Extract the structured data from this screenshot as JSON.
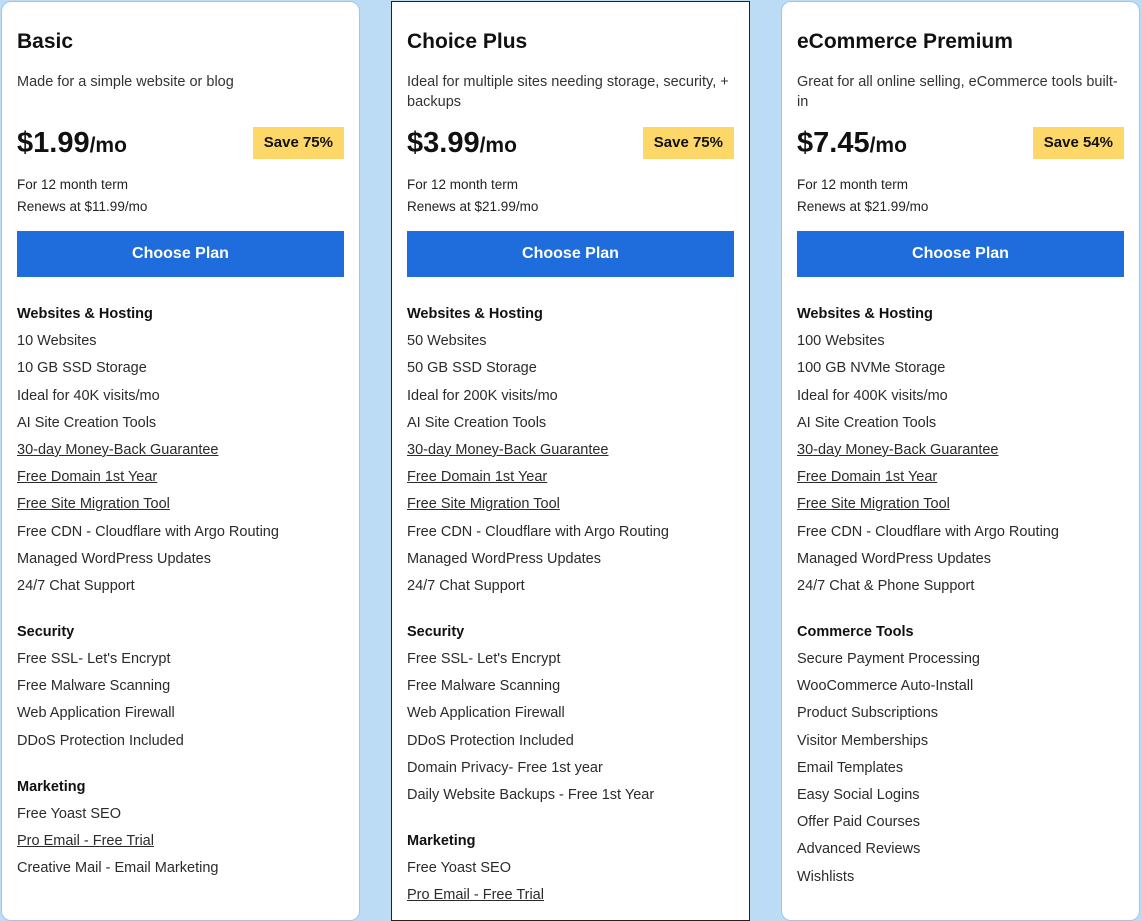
{
  "plans": [
    {
      "name": "Basic",
      "description": "Made for a simple website or blog",
      "price": "$1.99",
      "per": "/mo",
      "save": "Save 75%",
      "term": "For 12 month term",
      "renews": "Renews at $11.99/mo",
      "button": "Choose Plan",
      "sections": [
        {
          "title": "Websites & Hosting",
          "items": [
            {
              "text": "10 Websites",
              "link": false
            },
            {
              "text": "10 GB SSD Storage",
              "link": false
            },
            {
              "text": "Ideal for 40K visits/mo",
              "link": false
            },
            {
              "text": "AI Site Creation Tools",
              "link": false
            },
            {
              "text": "30-day Money-Back Guarantee",
              "link": true
            },
            {
              "text": "Free Domain 1st Year",
              "link": true
            },
            {
              "text": "Free Site Migration Tool",
              "link": true
            },
            {
              "text": "Free CDN - Cloudflare with Argo Routing",
              "link": false
            },
            {
              "text": "Managed WordPress Updates",
              "link": false
            },
            {
              "text": "24/7 Chat Support",
              "link": false
            }
          ]
        },
        {
          "title": "Security",
          "items": [
            {
              "text": "Free SSL- Let's Encrypt",
              "link": false
            },
            {
              "text": "Free Malware Scanning",
              "link": false
            },
            {
              "text": "Web Application Firewall",
              "link": false
            },
            {
              "text": "DDoS Protection Included",
              "link": false
            }
          ]
        },
        {
          "title": "Marketing",
          "items": [
            {
              "text": "Free Yoast SEO",
              "link": false
            },
            {
              "text": "Pro Email - Free Trial",
              "link": true
            },
            {
              "text": "Creative Mail - Email Marketing",
              "link": false
            }
          ]
        }
      ]
    },
    {
      "name": "Choice Plus",
      "description": "Ideal for multiple sites needing storage, security, + backups",
      "price": "$3.99",
      "per": "/mo",
      "save": "Save 75%",
      "term": "For 12 month term",
      "renews": "Renews at $21.99/mo",
      "button": "Choose Plan",
      "sections": [
        {
          "title": "Websites & Hosting",
          "items": [
            {
              "text": "50 Websites",
              "link": false
            },
            {
              "text": "50 GB SSD Storage",
              "link": false
            },
            {
              "text": "Ideal for 200K visits/mo",
              "link": false
            },
            {
              "text": "AI Site Creation Tools",
              "link": false
            },
            {
              "text": "30-day Money-Back Guarantee",
              "link": true
            },
            {
              "text": "Free Domain 1st Year",
              "link": true
            },
            {
              "text": "Free Site Migration Tool",
              "link": true
            },
            {
              "text": "Free CDN - Cloudflare with Argo Routing",
              "link": false
            },
            {
              "text": "Managed WordPress Updates",
              "link": false
            },
            {
              "text": "24/7 Chat Support",
              "link": false
            }
          ]
        },
        {
          "title": "Security",
          "items": [
            {
              "text": "Free SSL- Let's Encrypt",
              "link": false
            },
            {
              "text": "Free Malware Scanning",
              "link": false
            },
            {
              "text": "Web Application Firewall",
              "link": false
            },
            {
              "text": "DDoS Protection Included",
              "link": false
            },
            {
              "text": "Domain Privacy- Free 1st year",
              "link": false
            },
            {
              "text": "Daily Website Backups - Free 1st Year",
              "link": false
            }
          ]
        },
        {
          "title": "Marketing",
          "items": [
            {
              "text": "Free Yoast SEO",
              "link": false
            },
            {
              "text": "Pro Email - Free Trial",
              "link": true
            }
          ]
        }
      ]
    },
    {
      "name": "eCommerce Premium",
      "description": "Great for all online selling, eCommerce tools built-in",
      "price": "$7.45",
      "per": "/mo",
      "save": "Save 54%",
      "term": "For 12 month term",
      "renews": "Renews at $21.99/mo",
      "button": "Choose Plan",
      "sections": [
        {
          "title": "Websites & Hosting",
          "items": [
            {
              "text": "100 Websites",
              "link": false
            },
            {
              "text": "100 GB NVMe Storage",
              "link": false
            },
            {
              "text": "Ideal for 400K visits/mo",
              "link": false
            },
            {
              "text": "AI Site Creation Tools",
              "link": false
            },
            {
              "text": "30-day Money-Back Guarantee",
              "link": true
            },
            {
              "text": "Free Domain 1st Year",
              "link": true
            },
            {
              "text": "Free Site Migration Tool",
              "link": true
            },
            {
              "text": "Free CDN - Cloudflare with Argo Routing",
              "link": false
            },
            {
              "text": "Managed WordPress Updates",
              "link": false
            },
            {
              "text": "24/7 Chat & Phone Support",
              "link": false
            }
          ]
        },
        {
          "title": "Commerce Tools",
          "items": [
            {
              "text": "Secure Payment Processing",
              "link": false
            },
            {
              "text": "WooCommerce Auto-Install",
              "link": false
            },
            {
              "text": "Product Subscriptions",
              "link": false
            },
            {
              "text": "Visitor Memberships",
              "link": false
            },
            {
              "text": "Email Templates",
              "link": false
            },
            {
              "text": "Easy Social Logins",
              "link": false
            },
            {
              "text": "Offer Paid Courses",
              "link": false
            },
            {
              "text": "Advanced Reviews",
              "link": false
            },
            {
              "text": "Wishlists",
              "link": false
            }
          ]
        }
      ]
    }
  ],
  "colors": {
    "background": "#bcdcf6",
    "button": "#1f6ddd",
    "badge": "#fdd768"
  }
}
